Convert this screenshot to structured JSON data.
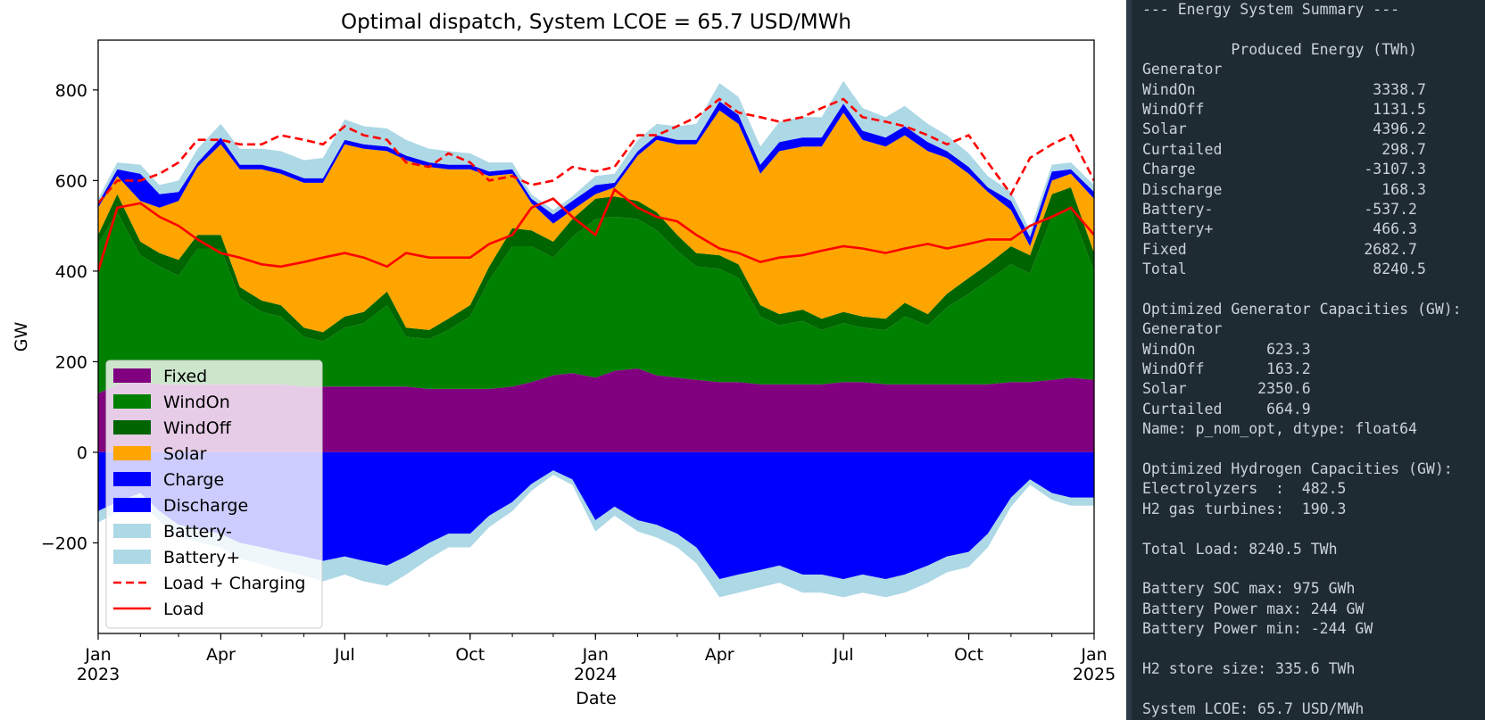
{
  "chart_data": {
    "type": "area",
    "title": "Optimal dispatch, System LCOE = 65.7 USD/MWh",
    "xlabel": "Date",
    "ylabel": "GW",
    "ylim": [
      -400,
      910
    ],
    "yticks": [
      -200,
      0,
      200,
      400,
      600,
      800
    ],
    "ytick_labels": [
      "−200",
      "0",
      "200",
      "400",
      "600",
      "800"
    ],
    "xlim": [
      "2023-01-01",
      "2025-01-01"
    ],
    "xticks": [
      {
        "date": "2023-01-01",
        "label": "Jan",
        "year": "2023"
      },
      {
        "date": "2023-04-01",
        "label": "Apr",
        "year": ""
      },
      {
        "date": "2023-07-01",
        "label": "Jul",
        "year": ""
      },
      {
        "date": "2023-10-01",
        "label": "Oct",
        "year": ""
      },
      {
        "date": "2024-01-01",
        "label": "Jan",
        "year": "2024"
      },
      {
        "date": "2024-04-01",
        "label": "Apr",
        "year": ""
      },
      {
        "date": "2024-07-01",
        "label": "Jul",
        "year": ""
      },
      {
        "date": "2024-10-01",
        "label": "Oct",
        "year": ""
      },
      {
        "date": "2025-01-01",
        "label": "Jan",
        "year": "2025"
      }
    ],
    "legend_position": "lower-left",
    "grid": false,
    "x": [
      "2023-01-01",
      "2023-01-15",
      "2023-02-01",
      "2023-02-15",
      "2023-03-01",
      "2023-03-15",
      "2023-04-01",
      "2023-04-15",
      "2023-05-01",
      "2023-05-15",
      "2023-06-01",
      "2023-06-15",
      "2023-07-01",
      "2023-07-15",
      "2023-08-01",
      "2023-08-15",
      "2023-09-01",
      "2023-09-15",
      "2023-10-01",
      "2023-10-15",
      "2023-11-01",
      "2023-11-15",
      "2023-12-01",
      "2023-12-15",
      "2024-01-01",
      "2024-01-15",
      "2024-02-01",
      "2024-02-15",
      "2024-03-01",
      "2024-03-15",
      "2024-04-01",
      "2024-04-15",
      "2024-05-01",
      "2024-05-15",
      "2024-06-01",
      "2024-06-15",
      "2024-07-01",
      "2024-07-15",
      "2024-08-01",
      "2024-08-15",
      "2024-09-01",
      "2024-09-15",
      "2024-10-01",
      "2024-10-15",
      "2024-11-01",
      "2024-11-15",
      "2024-12-01",
      "2024-12-15",
      "2025-01-01"
    ],
    "series": [
      {
        "name": "Fixed",
        "color": "#800080",
        "values": [
          130,
          150,
          155,
          150,
          150,
          150,
          150,
          150,
          150,
          150,
          145,
          145,
          145,
          145,
          145,
          145,
          140,
          140,
          140,
          140,
          145,
          155,
          170,
          175,
          165,
          180,
          185,
          170,
          165,
          160,
          155,
          155,
          150,
          150,
          150,
          150,
          155,
          155,
          150,
          150,
          150,
          150,
          150,
          150,
          155,
          155,
          160,
          165,
          160
        ]
      },
      {
        "name": "WindOn",
        "color": "#008000",
        "values": [
          330,
          380,
          280,
          260,
          240,
          300,
          300,
          190,
          160,
          150,
          110,
          100,
          130,
          140,
          180,
          110,
          110,
          130,
          160,
          240,
          310,
          300,
          260,
          300,
          350,
          340,
          330,
          320,
          280,
          250,
          250,
          230,
          150,
          130,
          140,
          120,
          130,
          120,
          120,
          150,
          130,
          170,
          200,
          230,
          260,
          240,
          360,
          370,
          240
        ]
      },
      {
        "name": "WindOff",
        "color": "#006400",
        "values": [
          20,
          40,
          30,
          30,
          35,
          30,
          30,
          25,
          25,
          25,
          20,
          20,
          25,
          25,
          30,
          20,
          20,
          25,
          25,
          30,
          40,
          35,
          35,
          40,
          45,
          45,
          40,
          40,
          35,
          30,
          30,
          30,
          25,
          25,
          25,
          25,
          25,
          25,
          25,
          30,
          25,
          30,
          35,
          35,
          40,
          40,
          50,
          50,
          40
        ]
      },
      {
        "name": "Solar",
        "color": "#ffa500",
        "values": [
          60,
          40,
          90,
          100,
          130,
          150,
          200,
          260,
          290,
          290,
          320,
          330,
          380,
          360,
          310,
          370,
          360,
          330,
          300,
          200,
          120,
          60,
          40,
          20,
          10,
          20,
          100,
          160,
          200,
          240,
          320,
          310,
          290,
          360,
          360,
          380,
          440,
          390,
          380,
          370,
          360,
          300,
          230,
          160,
          80,
          20,
          30,
          30,
          120
        ]
      },
      {
        "name": "Charge",
        "color": "#0000ff",
        "values": [
          -130,
          -110,
          -90,
          -130,
          -160,
          -170,
          -180,
          -200,
          -210,
          -220,
          -230,
          -240,
          -230,
          -240,
          -250,
          -230,
          -200,
          -180,
          -180,
          -140,
          -110,
          -70,
          -40,
          -60,
          -150,
          -120,
          -150,
          -160,
          -180,
          -210,
          -280,
          -270,
          -260,
          -250,
          -270,
          -270,
          -280,
          -270,
          -280,
          -270,
          -250,
          -230,
          -220,
          -180,
          -100,
          -60,
          -90,
          -100,
          -100
        ]
      },
      {
        "name": "Discharge",
        "color": "#0000ff",
        "values": [
          10,
          15,
          60,
          30,
          20,
          10,
          15,
          10,
          10,
          10,
          10,
          10,
          10,
          10,
          10,
          10,
          10,
          10,
          10,
          10,
          10,
          10,
          20,
          20,
          20,
          10,
          10,
          10,
          10,
          10,
          20,
          20,
          20,
          20,
          20,
          20,
          20,
          20,
          20,
          20,
          20,
          15,
          15,
          10,
          20,
          20,
          20,
          10,
          15
        ]
      },
      {
        "name": "Battery-",
        "color": "#add8e6",
        "values": [
          -25,
          -22,
          -20,
          -22,
          -25,
          -28,
          -30,
          -35,
          -38,
          -40,
          -42,
          -45,
          -40,
          -45,
          -45,
          -40,
          -35,
          -30,
          -30,
          -25,
          -20,
          -15,
          -10,
          -12,
          -25,
          -20,
          -25,
          -28,
          -30,
          -35,
          -40,
          -40,
          -38,
          -38,
          -40,
          -40,
          -40,
          -40,
          -40,
          -40,
          -38,
          -35,
          -33,
          -30,
          -20,
          -12,
          -15,
          -18,
          -18
        ]
      },
      {
        "name": "Battery+",
        "color": "#add8e6",
        "values": [
          10,
          15,
          20,
          20,
          25,
          30,
          30,
          35,
          35,
          40,
          40,
          45,
          45,
          40,
          40,
          35,
          30,
          30,
          25,
          20,
          15,
          10,
          10,
          10,
          20,
          20,
          25,
          25,
          30,
          35,
          40,
          40,
          40,
          45,
          45,
          45,
          50,
          50,
          45,
          45,
          40,
          35,
          30,
          25,
          20,
          15,
          15,
          15,
          15
        ]
      }
    ],
    "lines": [
      {
        "name": "Load + Charging",
        "color": "#ff0000",
        "style": "dashed",
        "values": [
          550,
          600,
          600,
          615,
          640,
          690,
          690,
          680,
          680,
          700,
          690,
          680,
          720,
          700,
          690,
          640,
          630,
          660,
          640,
          600,
          610,
          590,
          600,
          630,
          620,
          630,
          700,
          700,
          720,
          740,
          780,
          750,
          740,
          730,
          740,
          760,
          780,
          740,
          730,
          720,
          700,
          680,
          700,
          640,
          570,
          650,
          680,
          700,
          600
        ]
      },
      {
        "name": "Load",
        "color": "#ff0000",
        "style": "solid",
        "values": [
          400,
          540,
          550,
          520,
          500,
          470,
          440,
          430,
          415,
          410,
          420,
          430,
          440,
          430,
          410,
          440,
          430,
          430,
          430,
          460,
          480,
          540,
          560,
          520,
          480,
          580,
          540,
          520,
          510,
          480,
          450,
          440,
          420,
          430,
          435,
          445,
          455,
          450,
          440,
          450,
          460,
          450,
          460,
          470,
          470,
          500,
          520,
          540,
          480
        ]
      }
    ]
  },
  "terminal": {
    "lines": [
      "--- Energy System Summary ---",
      "",
      "          Produced Energy (TWh)",
      "Generator",
      "WindOn                    3338.7",
      "WindOff                   1131.5",
      "Solar                     4396.2",
      "Curtailed                  298.7",
      "Charge                   -3107.3",
      "Discharge                  168.3",
      "Battery-                 -537.2",
      "Battery+                  466.3",
      "Fixed                    2682.7",
      "Total                     8240.5",
      "",
      "Optimized Generator Capacities (GW):",
      "Generator",
      "WindOn        623.3",
      "WindOff       163.2",
      "Solar        2350.6",
      "Curtailed     664.9",
      "Name: p_nom_opt, dtype: float64",
      "",
      "Optimized Hydrogen Capacities (GW):",
      "Electrolyzers  :  482.5",
      "H2 gas turbines:  190.3",
      "",
      "Total Load: 8240.5 TWh",
      "",
      "Battery SOC max: 975 GWh",
      "Battery Power max: 244 GW",
      "Battery Power min: -244 GW",
      "",
      "H2 store size: 335.6 TWh",
      "",
      "System LCOE: 65.7 USD/MWh"
    ]
  }
}
